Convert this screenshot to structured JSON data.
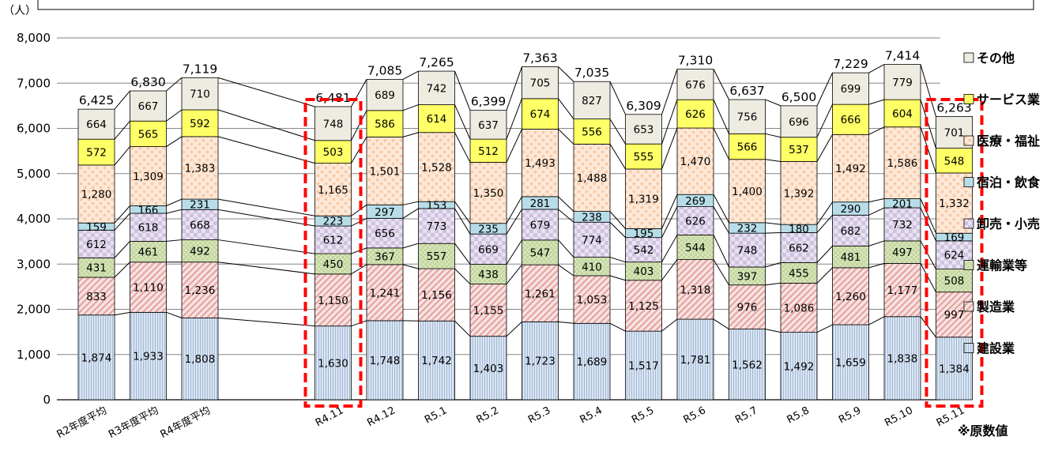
{
  "chart_data": {
    "type": "bar",
    "stacked": true,
    "ylabel": "（人）",
    "ylim": [
      0,
      8000
    ],
    "ytick_values": [
      0,
      1000,
      2000,
      3000,
      4000,
      5000,
      6000,
      7000,
      8000
    ],
    "ytick_labels": [
      "0",
      "1,000",
      "2,000",
      "3,000",
      "4,000",
      "5,000",
      "6,000",
      "7,000",
      "8,000"
    ],
    "grid": true,
    "legend_position": "right",
    "note": "※原数値",
    "categories": [
      "R2年度平均",
      "R3年度平均",
      "R4年度平均",
      "R4.11",
      "R4.12",
      "R5.1",
      "R5.2",
      "R5.3",
      "R5.4",
      "R5.5",
      "R5.6",
      "R5.7",
      "R5.8",
      "R5.9",
      "R5.10",
      "R5.11"
    ],
    "gap_after_index": 2,
    "highlighted_categories": [
      "R4.11",
      "R5.11"
    ],
    "totals": [
      6425,
      6830,
      7119,
      6481,
      7085,
      7265,
      6399,
      7363,
      7035,
      6309,
      7310,
      6637,
      6500,
      7229,
      7414,
      6263
    ],
    "series": [
      {
        "name": "建設業",
        "color": "#dbe5f1",
        "values": [
          1874,
          1933,
          1808,
          1630,
          1748,
          1742,
          1403,
          1723,
          1689,
          1517,
          1781,
          1562,
          1492,
          1659,
          1838,
          1384
        ]
      },
      {
        "name": "製造業",
        "color": "#f2dcdb",
        "values": [
          833,
          1110,
          1236,
          1150,
          1241,
          1156,
          1155,
          1261,
          1053,
          1125,
          1318,
          976,
          1086,
          1260,
          1177,
          997
        ]
      },
      {
        "name": "運輸業等",
        "color": "#d7e4bd",
        "values": [
          431,
          461,
          492,
          450,
          367,
          557,
          438,
          547,
          410,
          403,
          544,
          397,
          455,
          481,
          497,
          508
        ]
      },
      {
        "name": "卸売・小売",
        "color": "#e0d6ec",
        "values": [
          612,
          618,
          668,
          612,
          656,
          773,
          669,
          679,
          774,
          542,
          626,
          748,
          662,
          682,
          732,
          624
        ]
      },
      {
        "name": "宿泊・飲食",
        "color": "#b7dde8",
        "values": [
          159,
          166,
          231,
          223,
          297,
          153,
          235,
          281,
          238,
          195,
          269,
          232,
          180,
          290,
          201,
          169
        ]
      },
      {
        "name": "医療・福祉",
        "color": "#fde9d9",
        "values": [
          1280,
          1309,
          1383,
          1165,
          1501,
          1528,
          1350,
          1493,
          1488,
          1319,
          1470,
          1400,
          1392,
          1492,
          1586,
          1332
        ]
      },
      {
        "name": "サービス業",
        "color": "#ffff66",
        "values": [
          572,
          565,
          592,
          503,
          586,
          614,
          512,
          674,
          556,
          555,
          626,
          566,
          537,
          666,
          604,
          548
        ]
      },
      {
        "name": "その他",
        "color": "#eeece1",
        "values": [
          664,
          667,
          710,
          748,
          689,
          742,
          637,
          705,
          827,
          653,
          676,
          756,
          696,
          699,
          779,
          701
        ]
      }
    ]
  },
  "colors": {
    "highlight": "#ff0000",
    "axis": "#000000",
    "grid": "#868686"
  }
}
